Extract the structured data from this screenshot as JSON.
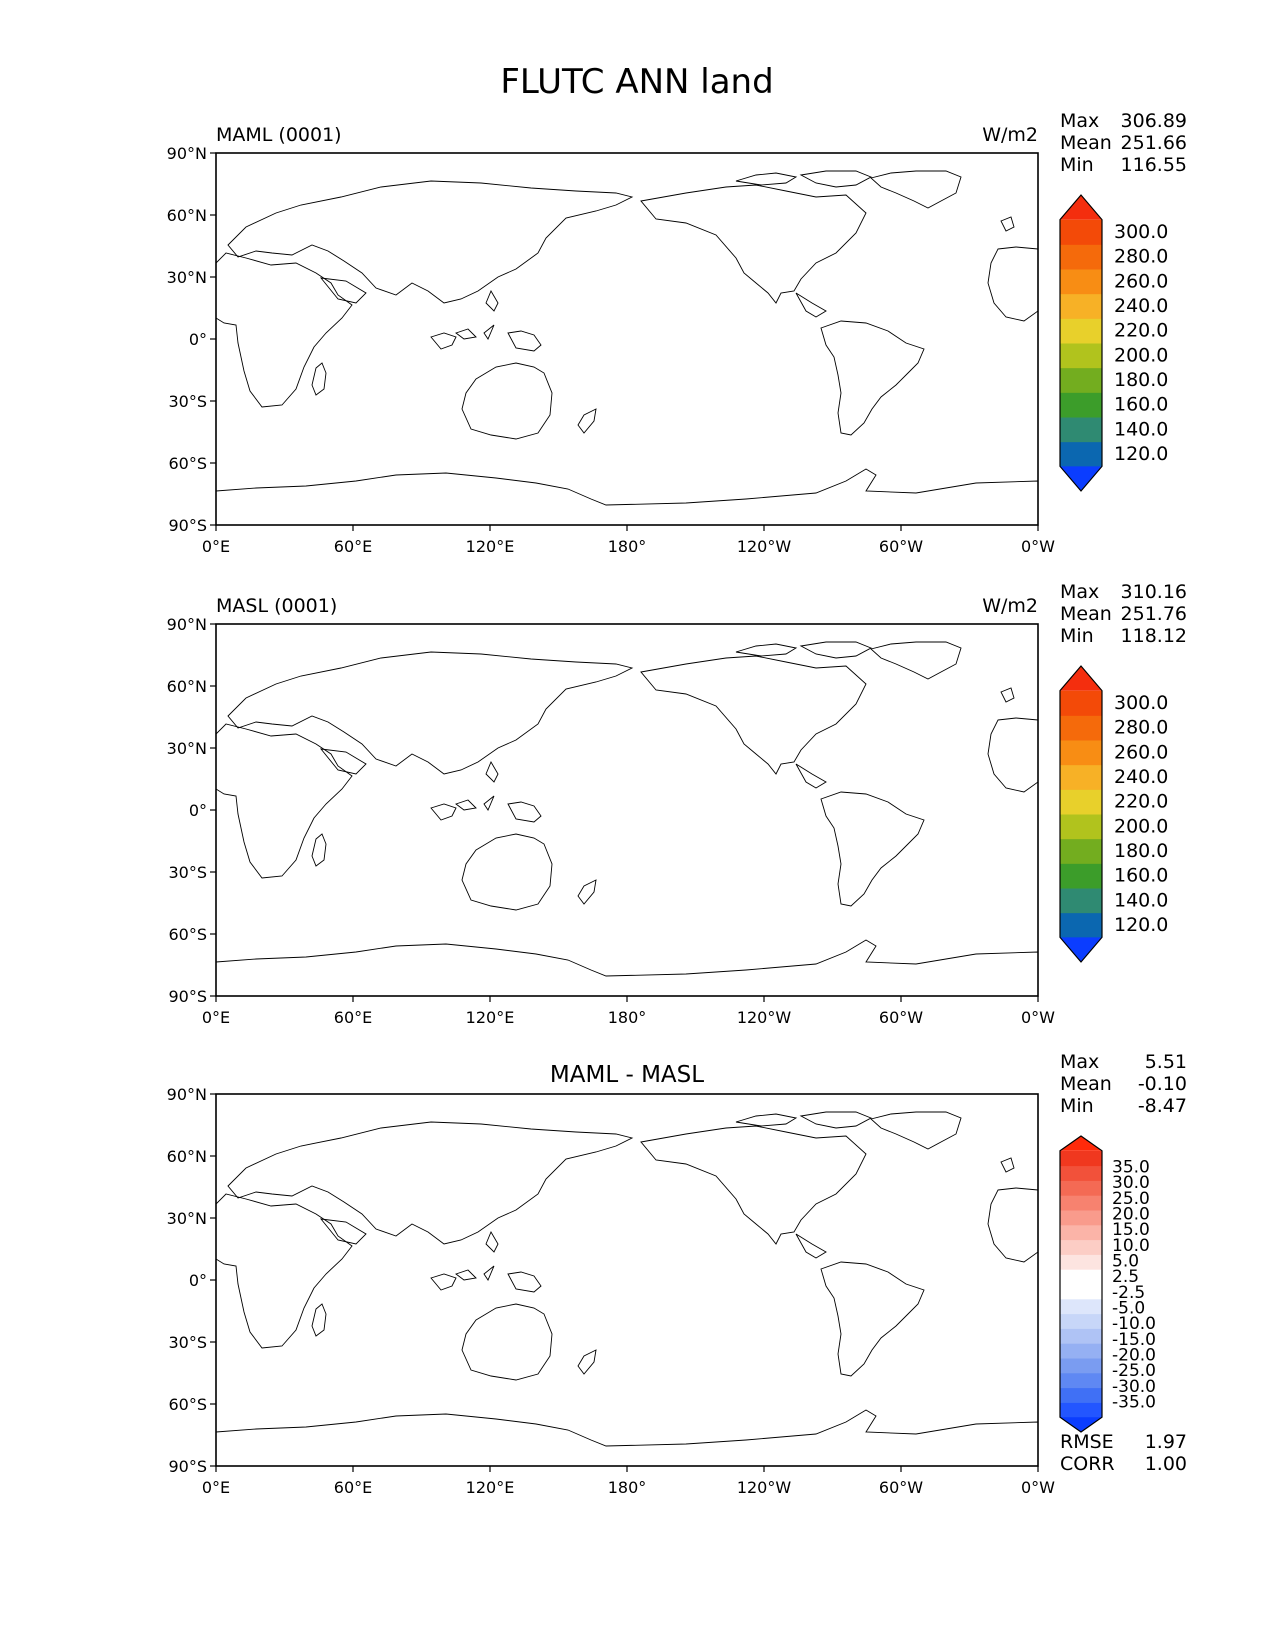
{
  "title": "FLUTC ANN land",
  "lon_ticks": [
    "0°E",
    "60°E",
    "120°E",
    "180°",
    "120°W",
    "60°W",
    "0°W"
  ],
  "lat_ticks": [
    "90°N",
    "60°N",
    "30°N",
    "0°",
    "30°S",
    "60°S",
    "90°S"
  ],
  "panels": [
    {
      "left_label": "MAML (0001)",
      "center_label": "",
      "units": "W/m2",
      "stats": [
        [
          "Max",
          "306.89"
        ],
        [
          "Mean",
          "251.66"
        ],
        [
          "Min",
          "116.55"
        ]
      ],
      "colorbar": {
        "colors": [
          "#0b3dff",
          "#0b67b0",
          "#2f8a72",
          "#3c9d2a",
          "#73ad1f",
          "#b1c31d",
          "#e8d02b",
          "#f7b126",
          "#f88d14",
          "#f56a0b",
          "#f34a08",
          "#f42e0e"
        ],
        "labels": [
          "120.0",
          "140.0",
          "160.0",
          "180.0",
          "200.0",
          "220.0",
          "240.0",
          "260.0",
          "280.0",
          "300.0"
        ]
      },
      "map_style": "field"
    },
    {
      "left_label": "MASL (0001)",
      "center_label": "",
      "units": "W/m2",
      "stats": [
        [
          "Max",
          "310.16"
        ],
        [
          "Mean",
          "251.76"
        ],
        [
          "Min",
          "118.12"
        ]
      ],
      "colorbar": {
        "colors": [
          "#0b3dff",
          "#0b67b0",
          "#2f8a72",
          "#3c9d2a",
          "#73ad1f",
          "#b1c31d",
          "#e8d02b",
          "#f7b126",
          "#f88d14",
          "#f56a0b",
          "#f34a08",
          "#f42e0e"
        ],
        "labels": [
          "120.0",
          "140.0",
          "160.0",
          "180.0",
          "200.0",
          "220.0",
          "240.0",
          "260.0",
          "280.0",
          "300.0"
        ]
      },
      "map_style": "field"
    },
    {
      "left_label": "",
      "center_label": "MAML - MASL",
      "units": "",
      "stats": [
        [
          "Max",
          "5.51"
        ],
        [
          "Mean",
          "-0.10"
        ],
        [
          "Min",
          "-8.47"
        ]
      ],
      "colorbar": {
        "colors": [
          "#0b3dff",
          "#2356ff",
          "#4070f5",
          "#5f88f3",
          "#7a9cf1",
          "#95b0f3",
          "#afc3f5",
          "#c7d6f8",
          "#dde6fb",
          "#ffffff",
          "#ffffff",
          "#fde4e0",
          "#fccdc5",
          "#fbb4a8",
          "#f99b8c",
          "#f7826f",
          "#f46a54",
          "#f2513a",
          "#f0381f",
          "#ff2a0a"
        ],
        "labels": [
          "-35.0",
          "-30.0",
          "-25.0",
          "-20.0",
          "-15.0",
          "-10.0",
          "-5.0",
          "-2.5",
          "2.5",
          "5.0",
          "10.0",
          "15.0",
          "20.0",
          "25.0",
          "30.0",
          "35.0"
        ]
      },
      "map_style": "diff",
      "extra_stats": [
        [
          "RMSE",
          "1.97"
        ],
        [
          "CORR",
          "1.00"
        ]
      ]
    }
  ]
}
